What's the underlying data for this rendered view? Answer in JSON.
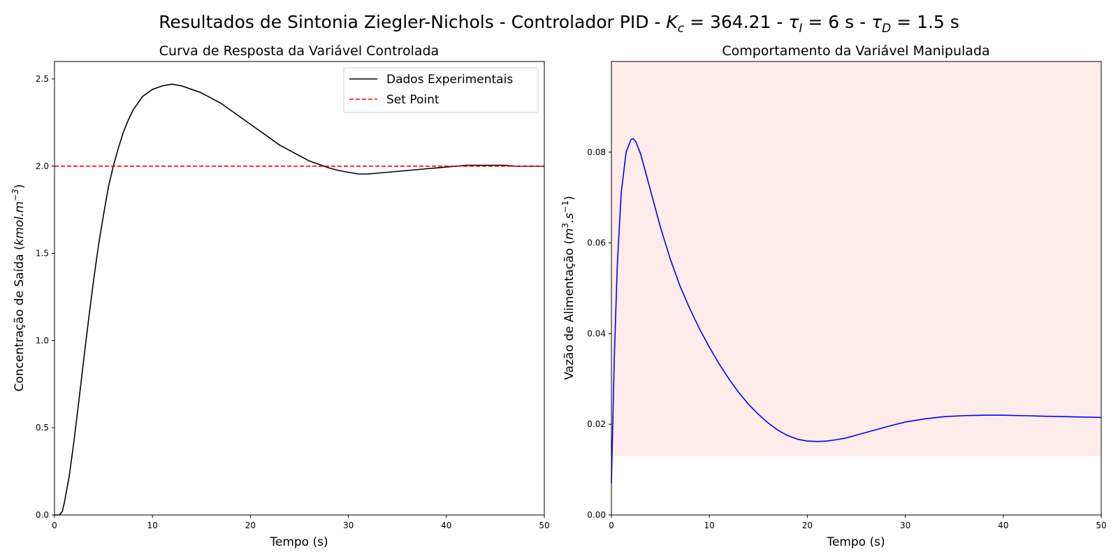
{
  "figure": {
    "suptitle_parts": {
      "pre": "Resultados de Sintonia Ziegler-Nichols - Controlador PID - ",
      "kc_sym": "K",
      "kc_sub": "c",
      "kc_val": " = 364.21 - ",
      "ti_sym": "τ",
      "ti_sub": "I",
      "ti_val": " = 6 s - ",
      "td_sym": "τ",
      "td_sub": "D",
      "td_val": " = 1.5 s"
    }
  },
  "chart_data": [
    {
      "type": "line",
      "title": "Curva de Resposta da Variável Controlada",
      "xlabel": "Tempo (s)",
      "ylabel_parts": {
        "pre": "Concentração de Saída (",
        "unit": "kmol.m",
        "sup": "−3",
        "post": ")"
      },
      "xlim": [
        0,
        50
      ],
      "ylim": [
        0,
        2.6
      ],
      "xticks": [
        "0",
        "10",
        "20",
        "30",
        "40",
        "50"
      ],
      "yticks": [
        "0.0",
        "0.5",
        "1.0",
        "1.5",
        "2.0",
        "2.5"
      ],
      "grid": false,
      "legend_position": "top-right",
      "series": [
        {
          "name": "Dados Experimentais",
          "color": "#000000",
          "style": "solid",
          "x": [
            0,
            0.5,
            0.8,
            1,
            1.5,
            2,
            2.5,
            3,
            3.5,
            4,
            4.5,
            5,
            5.5,
            6,
            6.5,
            7,
            7.5,
            8,
            8.5,
            9,
            9.5,
            10,
            11,
            12,
            13,
            14,
            15,
            16,
            17,
            18,
            19,
            20,
            21,
            22,
            23,
            24,
            25,
            26,
            27,
            28,
            29,
            30,
            31,
            32,
            33,
            34,
            35,
            36,
            37,
            38,
            39,
            40,
            41,
            42,
            43,
            44,
            45,
            46,
            47,
            48,
            49,
            50
          ],
          "y": [
            0,
            0,
            0.02,
            0.07,
            0.22,
            0.43,
            0.66,
            0.9,
            1.13,
            1.35,
            1.55,
            1.72,
            1.88,
            2.0,
            2.1,
            2.19,
            2.26,
            2.32,
            2.36,
            2.4,
            2.42,
            2.44,
            2.46,
            2.47,
            2.46,
            2.44,
            2.42,
            2.39,
            2.36,
            2.32,
            2.28,
            2.24,
            2.2,
            2.16,
            2.12,
            2.09,
            2.06,
            2.03,
            2.01,
            1.99,
            1.975,
            1.965,
            1.955,
            1.955,
            1.96,
            1.965,
            1.97,
            1.975,
            1.98,
            1.985,
            1.99,
            1.995,
            2.0,
            2.005,
            2.005,
            2.005,
            2.005,
            2.005,
            2.0,
            2.0,
            2.0,
            2.0
          ]
        },
        {
          "name": "Set Point",
          "color": "#ff0000",
          "style": "dashed",
          "x": [
            0,
            50
          ],
          "y": [
            2.0,
            2.0
          ]
        }
      ]
    },
    {
      "type": "line",
      "title": "Comportamento da Variável Manipulada",
      "xlabel": "Tempo (s)",
      "ylabel_parts": {
        "pre": "Vazão de Alimentação (",
        "unit": "m",
        "sup": "3",
        "mid": ".s",
        "sup2": "−1",
        "post": ")"
      },
      "xlim": [
        0,
        50
      ],
      "ylim": [
        0,
        0.1
      ],
      "xticks": [
        "0",
        "10",
        "20",
        "30",
        "40",
        "50"
      ],
      "yticks": [
        "0.00",
        "0.02",
        "0.04",
        "0.06",
        "0.08"
      ],
      "grid": false,
      "shaded_region": {
        "y_from": 0.013,
        "y_to": 0.1,
        "color": "#fdecea"
      },
      "series": [
        {
          "color": "#0000ff",
          "style": "solid",
          "x": [
            0,
            0.3,
            0.6,
            1,
            1.5,
            2,
            2.2,
            2.5,
            3,
            3.5,
            4,
            5,
            6,
            7,
            8,
            9,
            10,
            11,
            12,
            13,
            14,
            15,
            16,
            17,
            18,
            19,
            20,
            21,
            22,
            23,
            24,
            25,
            26,
            27,
            28,
            30,
            32,
            34,
            36,
            38,
            40,
            42,
            44,
            46,
            48,
            50
          ],
          "y": [
            0.007,
            0.035,
            0.055,
            0.071,
            0.08,
            0.0828,
            0.083,
            0.0823,
            0.0795,
            0.0755,
            0.0715,
            0.0635,
            0.0565,
            0.0505,
            0.0455,
            0.041,
            0.037,
            0.0333,
            0.03,
            0.027,
            0.0244,
            0.0222,
            0.0203,
            0.0187,
            0.0175,
            0.0167,
            0.0163,
            0.0162,
            0.0163,
            0.0166,
            0.017,
            0.0176,
            0.0182,
            0.0188,
            0.0194,
            0.0205,
            0.0212,
            0.0217,
            0.0219,
            0.022,
            0.022,
            0.0219,
            0.0218,
            0.0217,
            0.0216,
            0.0215
          ]
        }
      ]
    }
  ]
}
